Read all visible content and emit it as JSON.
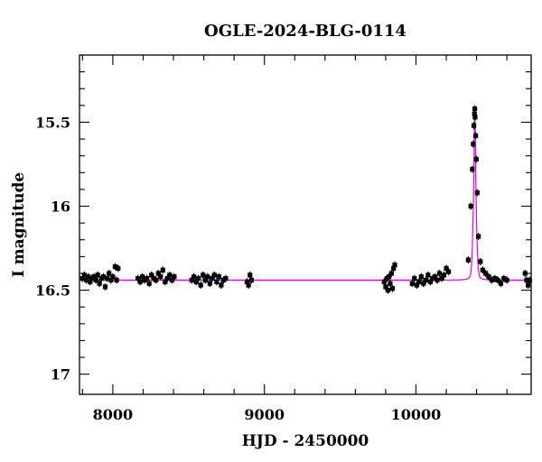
{
  "chart_data": {
    "type": "scatter",
    "title": "OGLE-2024-BLG-0114",
    "xlabel": "HJD - 2450000",
    "ylabel": "I magnitude",
    "xlim": [
      7780,
      10760
    ],
    "ylim": [
      17.12,
      15.1
    ],
    "y_inverted": true,
    "x_ticks": [
      8000,
      9000,
      10000
    ],
    "y_ticks": [
      15.5,
      16,
      16.5,
      17
    ],
    "y_tick_labels": [
      "15.5",
      "16",
      "16.5",
      "17"
    ],
    "grid": false,
    "colors": {
      "points": "#000000",
      "model": "#e600e6",
      "frame": "#000000"
    },
    "model": {
      "name": "",
      "baseline": 16.44,
      "peak_time": 10388,
      "peak_mag": 15.42,
      "tE": 14
    },
    "series": [
      {
        "x": [
          7800,
          7812,
          7825,
          7838,
          7850,
          7862,
          7875,
          7888,
          7900,
          7912,
          7925,
          7938,
          7950,
          7962,
          7975,
          7988,
          8000,
          8015,
          8025,
          8035,
          8165,
          8180,
          8195,
          8210,
          8225,
          8240,
          8255,
          8270,
          8285,
          8300,
          8315,
          8330,
          8345,
          8360,
          8375,
          8390,
          8405,
          8520,
          8535,
          8550,
          8565,
          8580,
          8595,
          8610,
          8625,
          8640,
          8655,
          8670,
          8685,
          8700,
          8715,
          8730,
          8745,
          8885,
          8895,
          8905,
          8915,
          9790,
          9800,
          9808,
          9815,
          9822,
          9830,
          9838,
          9845,
          9852,
          9860,
          9975,
          9990,
          10005,
          10020,
          10035,
          10050,
          10065,
          10080,
          10095,
          10110,
          10125,
          10140,
          10155,
          10170,
          10185,
          10200,
          10215,
          10345,
          10362,
          10372,
          10378,
          10382,
          10386,
          10388,
          10390,
          10394,
          10398,
          10404,
          10412,
          10425,
          10440,
          10460,
          10480,
          10500,
          10520,
          10540,
          10560,
          10580,
          10600,
          10720,
          10730,
          10740,
          10750
        ],
        "y": [
          16.43,
          16.41,
          16.44,
          16.42,
          16.45,
          16.43,
          16.42,
          16.44,
          16.41,
          16.46,
          16.43,
          16.42,
          16.48,
          16.43,
          16.4,
          16.44,
          16.42,
          16.36,
          16.44,
          16.37,
          16.43,
          16.45,
          16.42,
          16.44,
          16.43,
          16.46,
          16.41,
          16.43,
          16.44,
          16.4,
          16.42,
          16.38,
          16.45,
          16.43,
          16.41,
          16.44,
          16.42,
          16.44,
          16.42,
          16.45,
          16.43,
          16.47,
          16.41,
          16.44,
          16.42,
          16.46,
          16.43,
          16.41,
          16.45,
          16.42,
          16.47,
          16.44,
          16.43,
          16.45,
          16.47,
          16.41,
          16.44,
          16.45,
          16.48,
          16.43,
          16.5,
          16.42,
          16.46,
          16.4,
          16.49,
          16.37,
          16.35,
          16.46,
          16.43,
          16.47,
          16.45,
          16.42,
          16.46,
          16.44,
          16.41,
          16.45,
          16.43,
          16.42,
          16.44,
          16.4,
          16.43,
          16.41,
          16.37,
          16.39,
          16.32,
          16.0,
          15.78,
          15.63,
          15.52,
          15.45,
          15.42,
          15.47,
          15.58,
          15.72,
          15.92,
          16.18,
          16.33,
          16.38,
          16.4,
          16.42,
          16.44,
          16.43,
          16.44,
          16.46,
          16.43,
          16.44,
          16.4,
          16.44,
          16.47,
          16.44
        ]
      }
    ]
  }
}
